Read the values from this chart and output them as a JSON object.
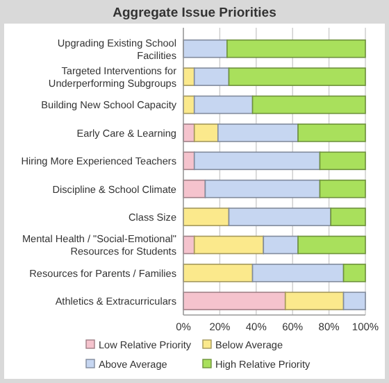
{
  "chart_data": {
    "type": "bar",
    "orientation": "horizontal",
    "stacked": true,
    "title": "Aggregate Issue Priorities",
    "categories": [
      "Upgrading Existing School Facilities",
      "Targeted Interventions for Underperforming Subgroups",
      "Building New School Capacity",
      "Early Care & Learning",
      "Hiring More Experienced Teachers",
      "Discipline & School Climate",
      "Class Size",
      "Mental Health / \"Social-Emotional\" Resources for Students",
      "Resources for Parents / Families",
      "Athletics & Extracurriculars"
    ],
    "series": [
      {
        "name": "Low Relative Priority",
        "color": "#f5c3cd",
        "values": [
          0,
          0,
          0,
          6,
          6,
          12,
          0,
          6,
          0,
          56
        ]
      },
      {
        "name": "Below Average",
        "color": "#fbe98c",
        "values": [
          0,
          6,
          6,
          13,
          0,
          0,
          25,
          38,
          38,
          32
        ]
      },
      {
        "name": "Above Average",
        "color": "#c6d6f1",
        "values": [
          24,
          19,
          32,
          44,
          69,
          63,
          56,
          19,
          50,
          12
        ]
      },
      {
        "name": "High Relative Priority",
        "color": "#a9e05c",
        "values": [
          76,
          75,
          62,
          37,
          25,
          25,
          19,
          37,
          12,
          0
        ]
      }
    ],
    "xlim": [
      0,
      100
    ],
    "xticks": [
      {
        "value": 0,
        "label": "0%"
      },
      {
        "value": 20,
        "label": "20%"
      },
      {
        "value": 40,
        "label": "40%"
      },
      {
        "value": 60,
        "label": "60%"
      },
      {
        "value": 80,
        "label": "80%"
      },
      {
        "value": 100,
        "label": "100%"
      }
    ],
    "grid": "x",
    "legend": "bottom"
  }
}
